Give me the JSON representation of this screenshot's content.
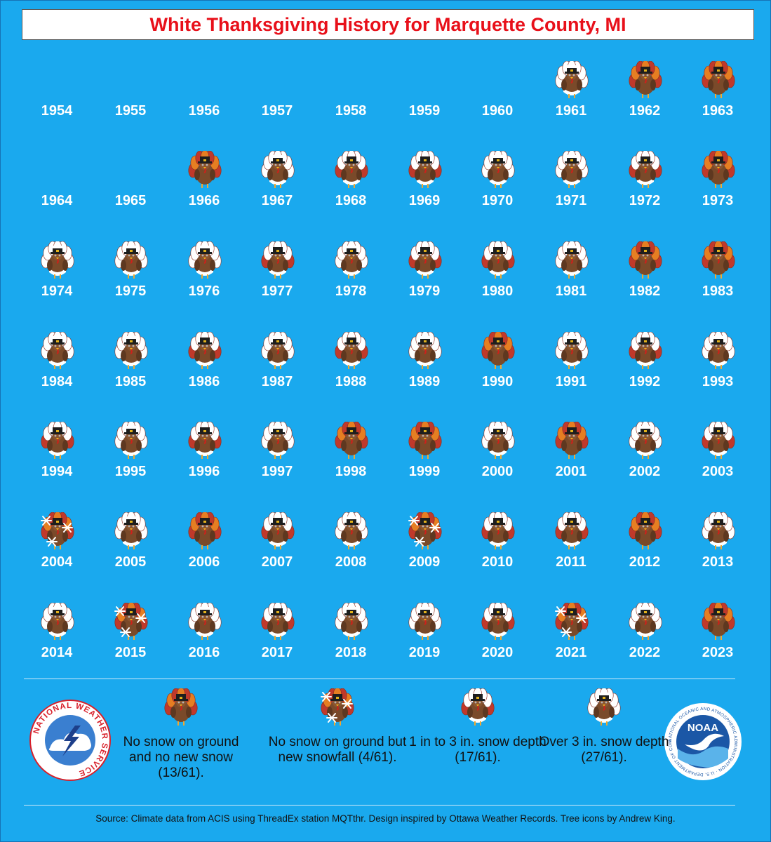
{
  "title": "White Thanksgiving History for Marquette County, MI",
  "chart_data": {
    "type": "table",
    "categories": [
      "none",
      "new_snow",
      "1to3",
      "over3"
    ],
    "years": [
      {
        "year": "1954",
        "cat": ""
      },
      {
        "year": "1955",
        "cat": ""
      },
      {
        "year": "1956",
        "cat": ""
      },
      {
        "year": "1957",
        "cat": ""
      },
      {
        "year": "1958",
        "cat": ""
      },
      {
        "year": "1959",
        "cat": ""
      },
      {
        "year": "1960",
        "cat": ""
      },
      {
        "year": "1961",
        "cat": "over3"
      },
      {
        "year": "1962",
        "cat": "none"
      },
      {
        "year": "1963",
        "cat": "none"
      },
      {
        "year": "1964",
        "cat": ""
      },
      {
        "year": "1965",
        "cat": ""
      },
      {
        "year": "1966",
        "cat": "none"
      },
      {
        "year": "1967",
        "cat": "over3"
      },
      {
        "year": "1968",
        "cat": "1to3"
      },
      {
        "year": "1969",
        "cat": "1to3"
      },
      {
        "year": "1970",
        "cat": "over3"
      },
      {
        "year": "1971",
        "cat": "over3"
      },
      {
        "year": "1972",
        "cat": "1to3"
      },
      {
        "year": "1973",
        "cat": "none"
      },
      {
        "year": "1974",
        "cat": "over3"
      },
      {
        "year": "1975",
        "cat": "over3"
      },
      {
        "year": "1976",
        "cat": "over3"
      },
      {
        "year": "1977",
        "cat": "1to3"
      },
      {
        "year": "1978",
        "cat": "over3"
      },
      {
        "year": "1979",
        "cat": "1to3"
      },
      {
        "year": "1980",
        "cat": "1to3"
      },
      {
        "year": "1981",
        "cat": "over3"
      },
      {
        "year": "1982",
        "cat": "none"
      },
      {
        "year": "1983",
        "cat": "none"
      },
      {
        "year": "1984",
        "cat": "over3"
      },
      {
        "year": "1985",
        "cat": "over3"
      },
      {
        "year": "1986",
        "cat": "1to3"
      },
      {
        "year": "1987",
        "cat": "over3"
      },
      {
        "year": "1988",
        "cat": "1to3"
      },
      {
        "year": "1989",
        "cat": "over3"
      },
      {
        "year": "1990",
        "cat": "none"
      },
      {
        "year": "1991",
        "cat": "over3"
      },
      {
        "year": "1992",
        "cat": "1to3"
      },
      {
        "year": "1993",
        "cat": "over3"
      },
      {
        "year": "1994",
        "cat": "1to3"
      },
      {
        "year": "1995",
        "cat": "over3"
      },
      {
        "year": "1996",
        "cat": "1to3"
      },
      {
        "year": "1997",
        "cat": "over3"
      },
      {
        "year": "1998",
        "cat": "none"
      },
      {
        "year": "1999",
        "cat": "none"
      },
      {
        "year": "2000",
        "cat": "over3"
      },
      {
        "year": "2001",
        "cat": "none"
      },
      {
        "year": "2002",
        "cat": "over3"
      },
      {
        "year": "2003",
        "cat": "1to3"
      },
      {
        "year": "2004",
        "cat": "new_snow"
      },
      {
        "year": "2005",
        "cat": "over3"
      },
      {
        "year": "2006",
        "cat": "none"
      },
      {
        "year": "2007",
        "cat": "1to3"
      },
      {
        "year": "2008",
        "cat": "over3"
      },
      {
        "year": "2009",
        "cat": "new_snow"
      },
      {
        "year": "2010",
        "cat": "1to3"
      },
      {
        "year": "2011",
        "cat": "1to3"
      },
      {
        "year": "2012",
        "cat": "none"
      },
      {
        "year": "2013",
        "cat": "over3"
      },
      {
        "year": "2014",
        "cat": "over3"
      },
      {
        "year": "2015",
        "cat": "new_snow"
      },
      {
        "year": "2016",
        "cat": "over3"
      },
      {
        "year": "2017",
        "cat": "1to3"
      },
      {
        "year": "2018",
        "cat": "over3"
      },
      {
        "year": "2019",
        "cat": "over3"
      },
      {
        "year": "2020",
        "cat": "1to3"
      },
      {
        "year": "2021",
        "cat": "new_snow"
      },
      {
        "year": "2022",
        "cat": "over3"
      },
      {
        "year": "2023",
        "cat": "none"
      }
    ]
  },
  "legend": [
    {
      "key": "none",
      "text": "No snow on ground and no new snow (13/61)."
    },
    {
      "key": "new_snow",
      "text": "No snow on ground but new snowfall (4/61)."
    },
    {
      "key": "1to3",
      "text": "1 in to 3 in. snow depth (17/61)."
    },
    {
      "key": "over3",
      "text": "Over 3 in. snow depth (27/61)."
    }
  ],
  "logos": {
    "nws_text": "NATIONAL WEATHER SERVICE",
    "noaa_text": "NOAA",
    "noaa_ring_text": "NATIONAL OCEANIC AND ATMOSPHERIC ADMINISTRATION · U.S. DEPARTMENT OF COMMERCE"
  },
  "source": "Source: Climate data from ACIS using ThreadEx station MQTthr. Design inspired by Ottawa Weather Records. Tree icons by Andrew King.",
  "colors": {
    "background": "#1aa9ee",
    "title": "#e8101a",
    "turkey_body": "#7a4a2a",
    "feather_red": "#c0392b",
    "feather_orange": "#e67e22",
    "snow": "#ffffff"
  }
}
